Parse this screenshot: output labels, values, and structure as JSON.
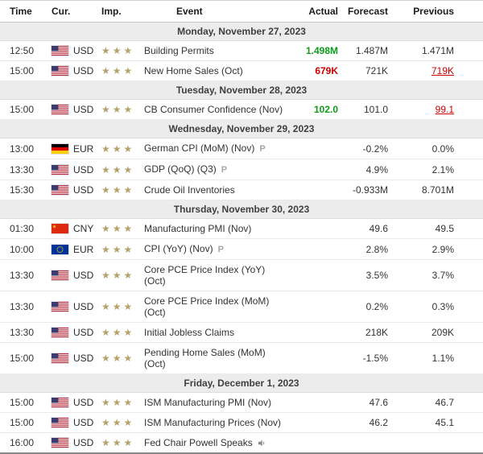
{
  "columns": {
    "time": "Time",
    "currency": "Cur.",
    "importance": "Imp.",
    "event": "Event",
    "actual": "Actual",
    "forecast": "Forecast",
    "previous": "Previous"
  },
  "icons": {
    "star_char": "★",
    "preliminary_char": "P",
    "speech": "speaker-icon"
  },
  "colors": {
    "positive": "#0e9c1a",
    "negative": "#cc0000",
    "revised": "#cc0000",
    "star": "#b5a26b",
    "group_header_bg": "#ececec"
  },
  "groups": [
    {
      "date": "Monday, November 27, 2023",
      "rows": [
        {
          "time": "12:50",
          "currency": "USD",
          "flag": "us",
          "importance": 3,
          "event": "Building Permits",
          "actual": "1.498M",
          "actual_state": "better",
          "forecast": "1.487M",
          "previous": "1.471M",
          "previous_revised": false
        },
        {
          "time": "15:00",
          "currency": "USD",
          "flag": "us",
          "importance": 3,
          "event": "New Home Sales (Oct)",
          "actual": "679K",
          "actual_state": "worse",
          "forecast": "721K",
          "previous": "719K",
          "previous_revised": true
        }
      ]
    },
    {
      "date": "Tuesday, November 28, 2023",
      "rows": [
        {
          "time": "15:00",
          "currency": "USD",
          "flag": "us",
          "importance": 3,
          "event": "CB Consumer Confidence (Nov)",
          "actual": "102.0",
          "actual_state": "better",
          "forecast": "101.0",
          "previous": "99.1",
          "previous_revised": true
        }
      ]
    },
    {
      "date": "Wednesday, November 29, 2023",
      "rows": [
        {
          "time": "13:00",
          "currency": "EUR",
          "flag": "de",
          "importance": 3,
          "event": "German CPI (MoM) (Nov)",
          "preliminary": true,
          "actual": "",
          "forecast": "-0.2%",
          "previous": "0.0%"
        },
        {
          "time": "13:30",
          "currency": "USD",
          "flag": "us",
          "importance": 3,
          "event": "GDP (QoQ) (Q3)",
          "preliminary": true,
          "actual": "",
          "forecast": "4.9%",
          "previous": "2.1%"
        },
        {
          "time": "15:30",
          "currency": "USD",
          "flag": "us",
          "importance": 3,
          "event": "Crude Oil Inventories",
          "actual": "",
          "forecast": "-0.933M",
          "previous": "8.701M"
        }
      ]
    },
    {
      "date": "Thursday, November 30, 2023",
      "rows": [
        {
          "time": "01:30",
          "currency": "CNY",
          "flag": "cn",
          "importance": 3,
          "event": "Manufacturing PMI (Nov)",
          "actual": "",
          "forecast": "49.6",
          "previous": "49.5"
        },
        {
          "time": "10:00",
          "currency": "EUR",
          "flag": "eu",
          "importance": 3,
          "event": "CPI (YoY) (Nov)",
          "preliminary": true,
          "actual": "",
          "forecast": "2.8%",
          "previous": "2.9%"
        },
        {
          "time": "13:30",
          "currency": "USD",
          "flag": "us",
          "importance": 3,
          "event": "Core PCE Price Index (YoY)",
          "event2": "(Oct)",
          "actual": "",
          "forecast": "3.5%",
          "previous": "3.7%"
        },
        {
          "time": "13:30",
          "currency": "USD",
          "flag": "us",
          "importance": 3,
          "event": "Core PCE Price Index (MoM)",
          "event2": "(Oct)",
          "actual": "",
          "forecast": "0.2%",
          "previous": "0.3%"
        },
        {
          "time": "13:30",
          "currency": "USD",
          "flag": "us",
          "importance": 3,
          "event": "Initial Jobless Claims",
          "actual": "",
          "forecast": "218K",
          "previous": "209K"
        },
        {
          "time": "15:00",
          "currency": "USD",
          "flag": "us",
          "importance": 3,
          "event": "Pending Home Sales (MoM)",
          "event2": "(Oct)",
          "actual": "",
          "forecast": "-1.5%",
          "previous": "1.1%"
        }
      ]
    },
    {
      "date": "Friday, December 1, 2023",
      "rows": [
        {
          "time": "15:00",
          "currency": "USD",
          "flag": "us",
          "importance": 3,
          "event": "ISM Manufacturing PMI (Nov)",
          "actual": "",
          "forecast": "47.6",
          "previous": "46.7"
        },
        {
          "time": "15:00",
          "currency": "USD",
          "flag": "us",
          "importance": 3,
          "event": "ISM Manufacturing Prices (Nov)",
          "actual": "",
          "forecast": "46.2",
          "previous": "45.1"
        },
        {
          "time": "16:00",
          "currency": "USD",
          "flag": "us",
          "importance": 3,
          "event": "Fed Chair Powell Speaks",
          "speech": true,
          "actual": "",
          "forecast": "",
          "previous": ""
        }
      ]
    }
  ]
}
